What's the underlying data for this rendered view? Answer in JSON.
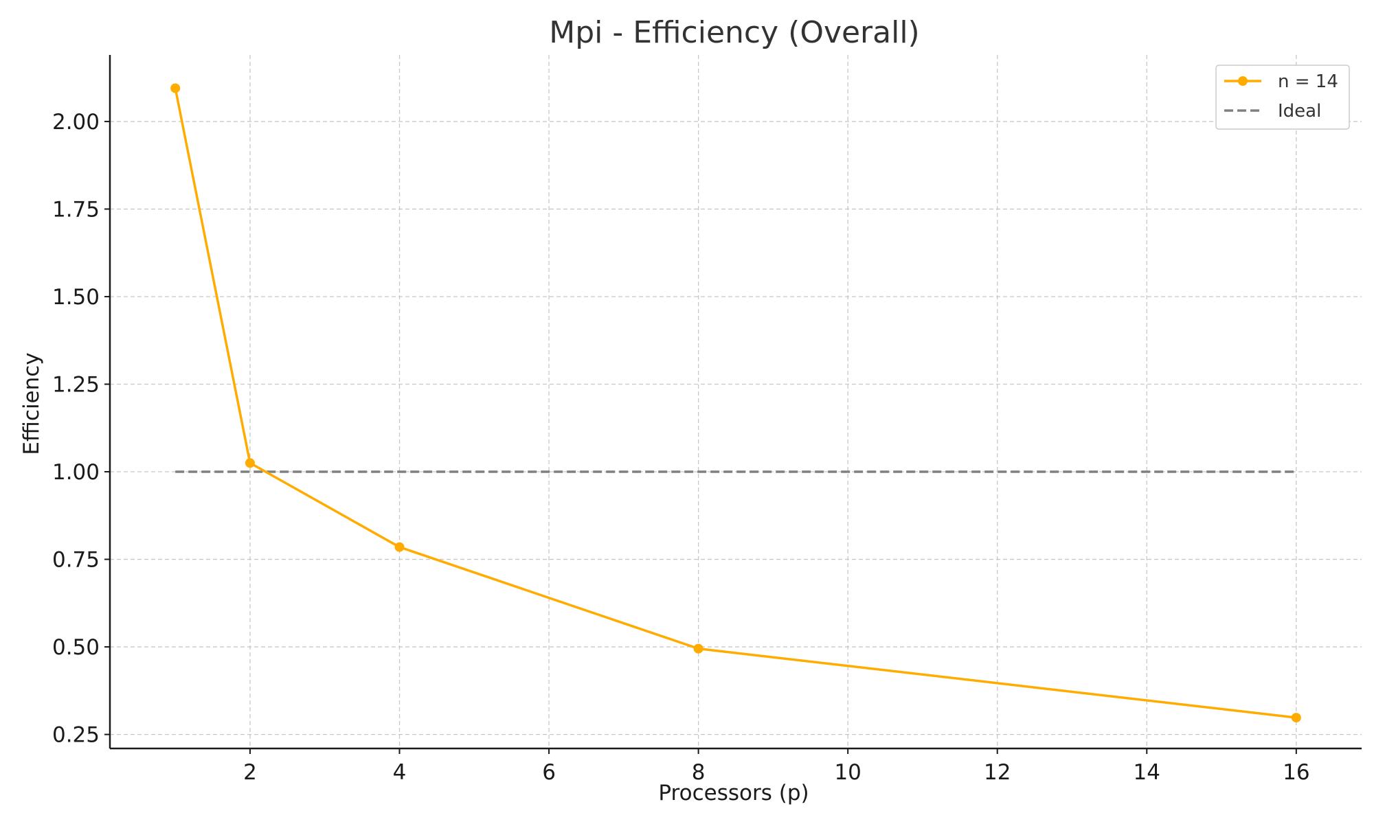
{
  "chart_data": {
    "type": "line",
    "title": "Mpi - Efficiency (Overall)",
    "xlabel": "Processors (p)",
    "ylabel": "Efficiency",
    "xlim": [
      0.125,
      16.875
    ],
    "ylim": [
      0.21,
      2.19
    ],
    "xticks": [
      2,
      4,
      6,
      8,
      10,
      12,
      14,
      16
    ],
    "yticks": [
      0.25,
      0.5,
      0.75,
      1.0,
      1.25,
      1.5,
      1.75,
      2.0
    ],
    "xtick_labels": [
      "2",
      "4",
      "6",
      "8",
      "10",
      "12",
      "14",
      "16"
    ],
    "ytick_labels": [
      "0.25",
      "0.50",
      "0.75",
      "1.00",
      "1.25",
      "1.50",
      "1.75",
      "2.00"
    ],
    "grid": true,
    "legend_position": "top-right",
    "series": [
      {
        "name": "n = 14",
        "color": "#ffab00",
        "style": "solid",
        "marker": "circle",
        "x": [
          1,
          2,
          4,
          8,
          16
        ],
        "y": [
          2.095,
          1.025,
          0.785,
          0.495,
          0.298
        ]
      },
      {
        "name": "Ideal",
        "color": "#808080",
        "style": "dashed",
        "marker": "none",
        "x": [
          1,
          16
        ],
        "y": [
          1.0,
          1.0
        ]
      }
    ]
  }
}
